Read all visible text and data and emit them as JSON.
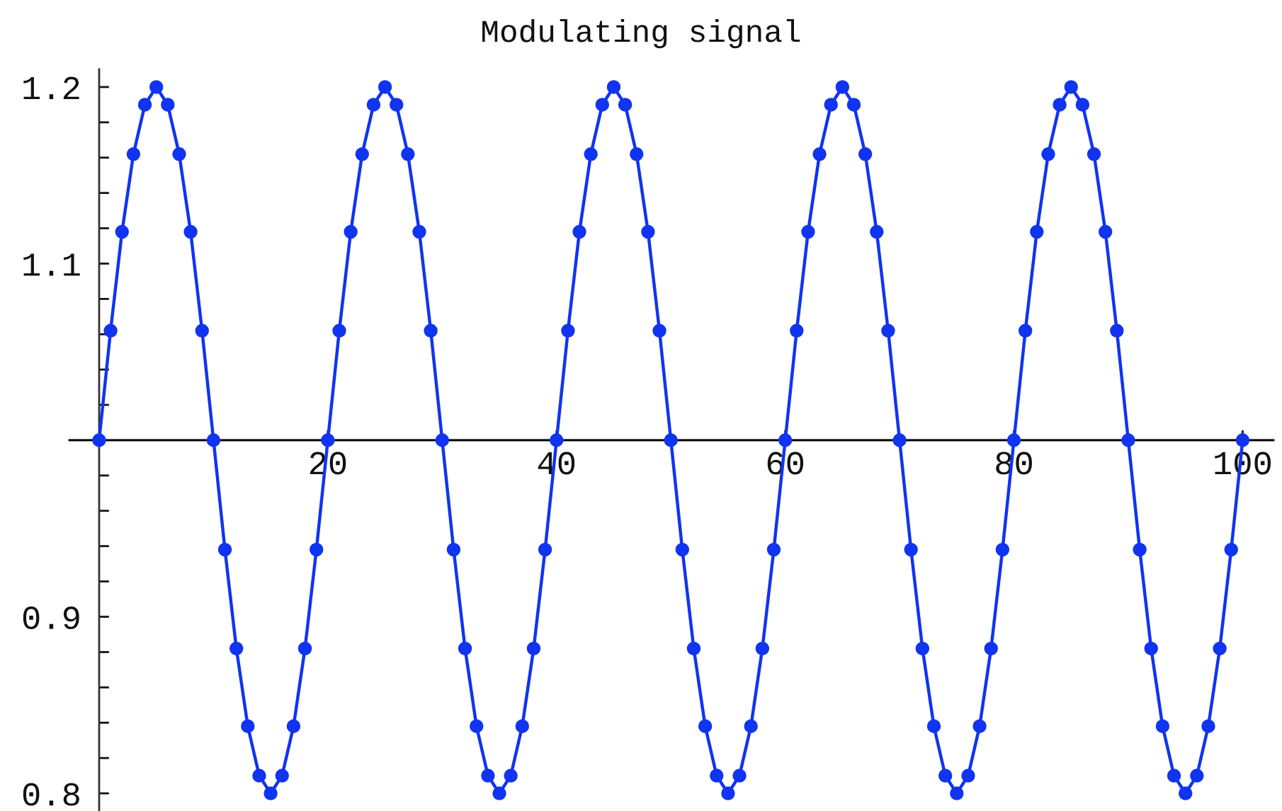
{
  "chart_data": {
    "type": "line",
    "title": "Modulating signal",
    "x": [
      0,
      1,
      2,
      3,
      4,
      5,
      6,
      7,
      8,
      9,
      10,
      11,
      12,
      13,
      14,
      15,
      16,
      17,
      18,
      19,
      20,
      21,
      22,
      23,
      24,
      25,
      26,
      27,
      28,
      29,
      30,
      31,
      32,
      33,
      34,
      35,
      36,
      37,
      38,
      39,
      40,
      41,
      42,
      43,
      44,
      45,
      46,
      47,
      48,
      49,
      50,
      51,
      52,
      53,
      54,
      55,
      56,
      57,
      58,
      59,
      60,
      61,
      62,
      63,
      64,
      65,
      66,
      67,
      68,
      69,
      70,
      71,
      72,
      73,
      74,
      75,
      76,
      77,
      78,
      79,
      80,
      81,
      82,
      83,
      84,
      85,
      86,
      87,
      88,
      89,
      90,
      91,
      92,
      93,
      94,
      95,
      96,
      97,
      98,
      99,
      100
    ],
    "series": [
      {
        "color": "#1034f0",
        "values": [
          1.0,
          1.062,
          1.118,
          1.162,
          1.19,
          1.2,
          1.19,
          1.162,
          1.118,
          1.062,
          1.0,
          0.938,
          0.882,
          0.838,
          0.81,
          0.8,
          0.81,
          0.838,
          0.882,
          0.938,
          1.0,
          1.062,
          1.118,
          1.162,
          1.19,
          1.2,
          1.19,
          1.162,
          1.118,
          1.062,
          1.0,
          0.938,
          0.882,
          0.838,
          0.81,
          0.8,
          0.81,
          0.838,
          0.882,
          0.938,
          1.0,
          1.062,
          1.118,
          1.162,
          1.19,
          1.2,
          1.19,
          1.162,
          1.118,
          1.062,
          1.0,
          0.938,
          0.882,
          0.838,
          0.81,
          0.8,
          0.81,
          0.838,
          0.882,
          0.938,
          1.0,
          1.062,
          1.118,
          1.162,
          1.19,
          1.2,
          1.19,
          1.162,
          1.118,
          1.062,
          1.0,
          0.938,
          0.882,
          0.838,
          0.81,
          0.8,
          0.81,
          0.838,
          0.882,
          0.938,
          1.0,
          1.062,
          1.118,
          1.162,
          1.19,
          1.2,
          1.19,
          1.162,
          1.118,
          1.062,
          1.0,
          0.938,
          0.882,
          0.838,
          0.81,
          0.8,
          0.81,
          0.838,
          0.882,
          0.938,
          1.0
        ]
      }
    ],
    "xlim": [
      -2.6,
      102.7
    ],
    "ylim": [
      0.79,
      1.21
    ],
    "xticks": [
      20,
      40,
      60,
      80,
      100
    ],
    "yticks": [
      0.8,
      {
        "value": 0.82,
        "label": null
      },
      {
        "value": 0.84,
        "label": null
      },
      {
        "value": 0.86,
        "label": null
      },
      {
        "value": 0.88,
        "label": null
      },
      0.9,
      {
        "value": 0.92,
        "label": null
      },
      {
        "value": 0.94,
        "label": null
      },
      {
        "value": 0.96,
        "label": null
      },
      {
        "value": 0.98,
        "label": null
      },
      {
        "value": 1.02,
        "label": null
      },
      {
        "value": 1.04,
        "label": null
      },
      {
        "value": 1.06,
        "label": null
      },
      {
        "value": 1.08,
        "label": null
      },
      1.1,
      {
        "value": 1.12,
        "label": null
      },
      {
        "value": 1.14,
        "label": null
      },
      {
        "value": 1.16,
        "label": null
      },
      {
        "value": 1.18,
        "label": null
      },
      1.2
    ],
    "grid": false,
    "marker": "circle",
    "line_style": "solid"
  }
}
